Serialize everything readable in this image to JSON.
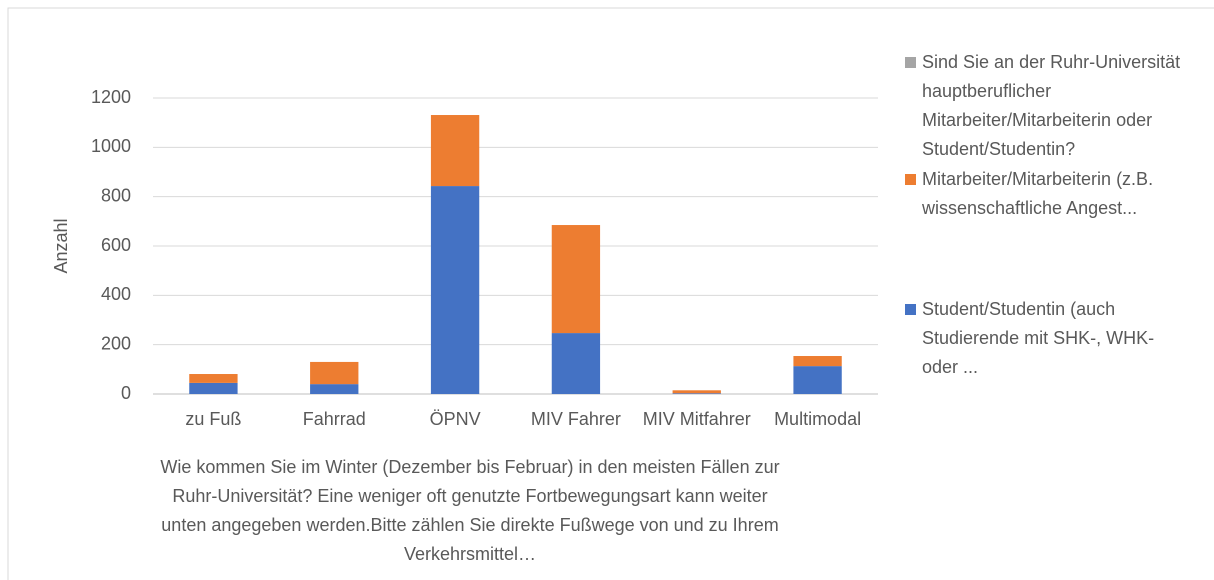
{
  "chart_data": {
    "type": "stacked_bar",
    "y_label": "Anzahl",
    "x_label": "Wie kommen Sie im Winter (Dezember bis Februar) in den meisten Fällen zur Ruhr-Universität? Eine weniger oft genutzte Fortbewegungsart kann weiter unten angegeben werden.Bitte zählen Sie direkte Fußwege von und zu Ihrem Verkehrsmittel…",
    "categories": [
      "zu Fuß",
      "Fahrrad",
      "ÖPNV",
      "MIV Fahrer",
      "MIV Mitfahrer",
      "Multimodal"
    ],
    "series": [
      {
        "name": "Student/Studentin (auch Studierende mit SHK-, WHK- oder ...",
        "color": "#4472c4",
        "values": [
          45,
          40,
          843,
          247,
          3,
          113
        ]
      },
      {
        "name": "Mitarbeiter/Mitarbeiterin (z.B. wissenschaftliche Angest...",
        "color": "#ed7d31",
        "values": [
          36,
          90,
          288,
          438,
          12,
          41
        ]
      },
      {
        "name": "Sind Sie an der Ruhr-Universität hauptberuflicher Mitarbeiter/Mitarbeiterin oder Student/Studentin?",
        "color": "#a5a5a5",
        "values": [
          0,
          0,
          0,
          0,
          0,
          0
        ]
      }
    ],
    "ylim": [
      0,
      1200
    ],
    "yticks": [
      0,
      200,
      400,
      600,
      800,
      1000,
      1200
    ],
    "grid": true,
    "legend": "right"
  }
}
